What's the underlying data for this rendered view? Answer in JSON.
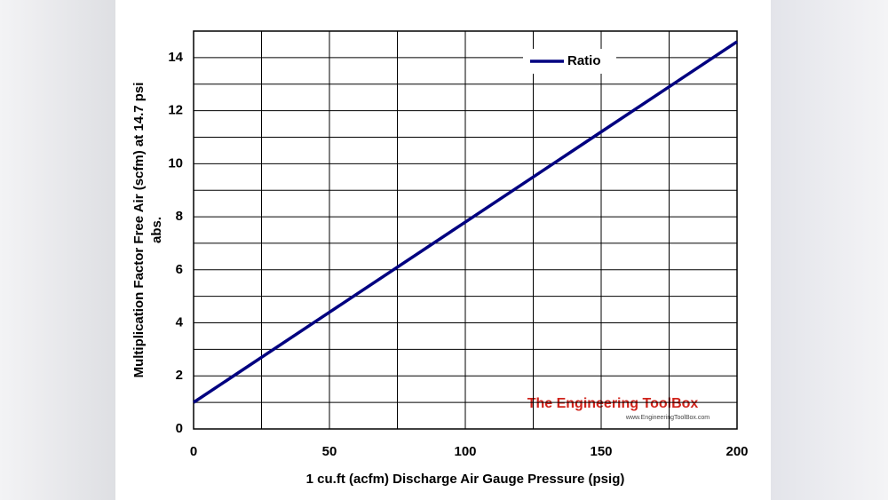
{
  "chart_data": {
    "type": "line",
    "x_label": "1 cu.ft (acfm) Discharge Air Gauge Pressure (psig)",
    "y_label": [
      "Multiplication Factor Free Air (scfm) at 14.7 psi",
      "abs."
    ],
    "x": [
      0,
      50,
      100,
      150,
      200
    ],
    "series": [
      {
        "name": "Ratio",
        "color": "#000080",
        "values": [
          1,
          4.4,
          7.8,
          11.2,
          14.6
        ]
      }
    ],
    "xlim": [
      0,
      200
    ],
    "xticks": [
      0,
      50,
      100,
      150,
      200
    ],
    "x_minor_ticks": [
      25,
      75,
      125,
      175
    ],
    "ylim": [
      0,
      15
    ],
    "yticks": [
      0,
      2,
      4,
      6,
      8,
      10,
      12,
      14
    ],
    "y_minor_ticks": [
      1,
      3,
      5,
      7,
      9,
      11,
      13,
      15
    ],
    "grid": true,
    "legend": "top-right",
    "watermark": {
      "title": "The Engineering ToolBox",
      "url": "www.EngineeringToolBox.com"
    }
  }
}
